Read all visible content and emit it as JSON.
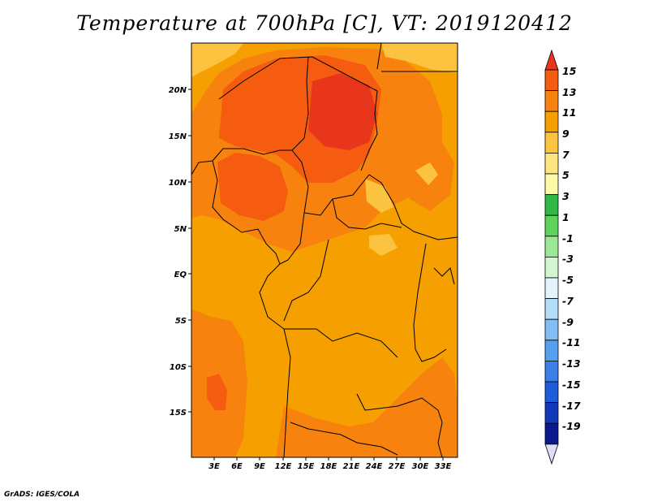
{
  "title": "Temperature at 700hPa [C], VT: 2019120412",
  "credit": "GrADS: IGES/COLA",
  "map": {
    "lat_labels": [
      "20N",
      "15N",
      "10N",
      "5N",
      "EQ",
      "5S",
      "10S",
      "15S"
    ],
    "lon_labels": [
      "3E",
      "6E",
      "9E",
      "12E",
      "15E",
      "18E",
      "21E",
      "24E",
      "27E",
      "30E",
      "33E"
    ],
    "background_color": "#F5A000"
  },
  "colorbar": {
    "labels": [
      "15",
      "13",
      "11",
      "9",
      "7",
      "5",
      "3",
      "1",
      "-1",
      "-3",
      "-5",
      "-7",
      "-9",
      "-11",
      "-13",
      "-15",
      "-17",
      "-19"
    ],
    "colors": [
      "#E8361C",
      "#F55C0F",
      "#F7830E",
      "#F5A000",
      "#FCC341",
      "#FDE57F",
      "#FFFAAA",
      "#2EB845",
      "#5FD45D",
      "#9AE897",
      "#D3F6D0",
      "#E3F3FC",
      "#B3DCF9",
      "#82BEF4",
      "#559FEF",
      "#3C7FE8",
      "#1F5CDC",
      "#1138B8",
      "#0A1A8C",
      "#E0DDF7"
    ]
  }
}
